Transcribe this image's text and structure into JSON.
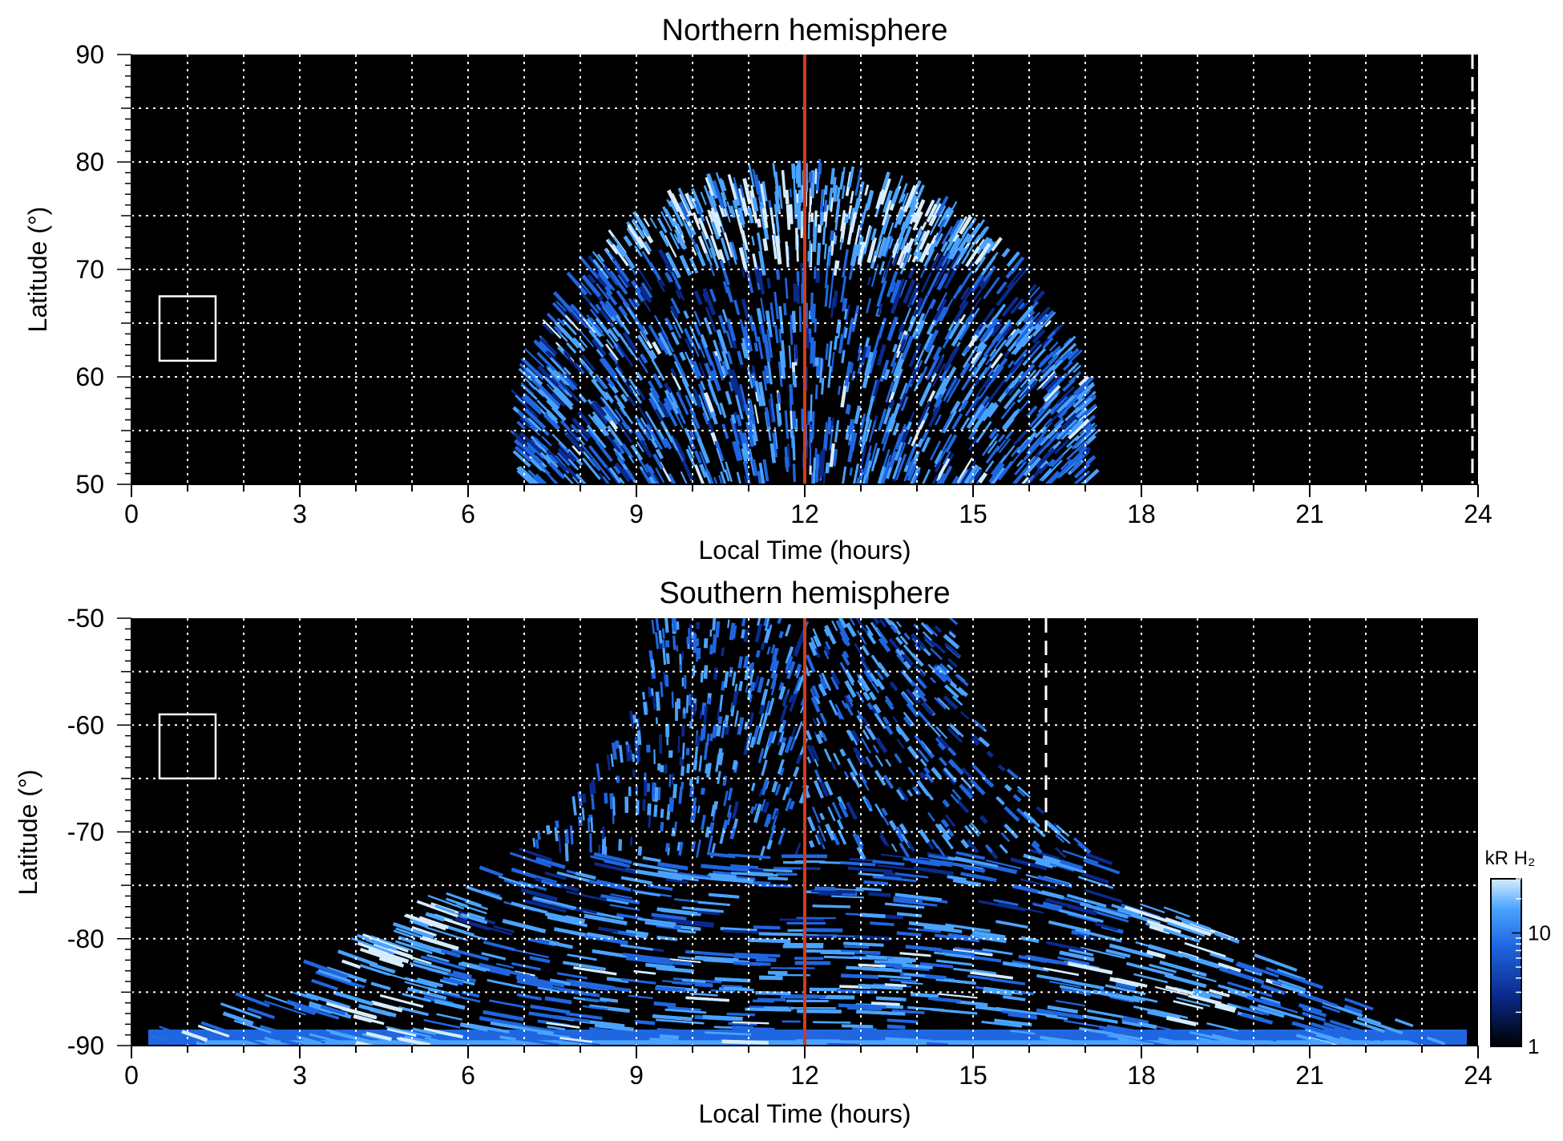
{
  "chart_data": [
    {
      "type": "heatmap",
      "title": "Northern hemisphere",
      "xlabel": "Local Time (hours)",
      "ylabel": "Latitude (°)",
      "xlim": [
        0,
        24
      ],
      "ylim": [
        50,
        90
      ],
      "xticks": [
        "0",
        "3",
        "6",
        "9",
        "12",
        "15",
        "18",
        "21",
        "24"
      ],
      "yticks": [
        "50",
        "60",
        "70",
        "80",
        "90"
      ],
      "grid": true,
      "highlight_line_x": 12,
      "highlight_line_color": "#d13b1b",
      "dashed_line_x": 23.9,
      "box": {
        "x_range": [
          0.5,
          1.5
        ],
        "y_range": [
          61.5,
          67.5
        ]
      },
      "emission_region": {
        "lt_range": [
          7.0,
          17.2
        ],
        "lat_range": [
          50,
          79.5
        ],
        "main_oval_lat": [
          72,
          77
        ],
        "inner_dark_lat": [
          66,
          70
        ]
      }
    },
    {
      "type": "heatmap",
      "title": "Southern hemisphere",
      "xlabel": "Local Time (hours)",
      "ylabel": "Latitude (°)",
      "xlim": [
        0,
        24
      ],
      "ylim": [
        -90,
        -50
      ],
      "xticks": [
        "0",
        "3",
        "6",
        "9",
        "12",
        "15",
        "18",
        "21",
        "24"
      ],
      "yticks": [
        "-90",
        "-80",
        "-70",
        "-60",
        "-50"
      ],
      "grid": true,
      "highlight_line_x": 12,
      "highlight_line_color": "#d13b1b",
      "dashed_line_x": 16.3,
      "box": {
        "x_range": [
          0.5,
          1.5
        ],
        "y_range": [
          -65,
          -59
        ]
      },
      "emission_region": {
        "lt_range": [
          0.3,
          23.8
        ],
        "lat_range": [
          -90,
          -50
        ],
        "bright_arcs_lt": [
          6.2,
          17.6
        ]
      }
    }
  ],
  "colorbar": {
    "label": "kR H₂",
    "tick_labels": [
      "1",
      "10"
    ],
    "range": [
      1,
      30
    ],
    "scale": "log",
    "colors": [
      "#000000",
      "#0a2a8c",
      "#1f66e0",
      "#4aa3ff",
      "#d6ecff"
    ]
  }
}
